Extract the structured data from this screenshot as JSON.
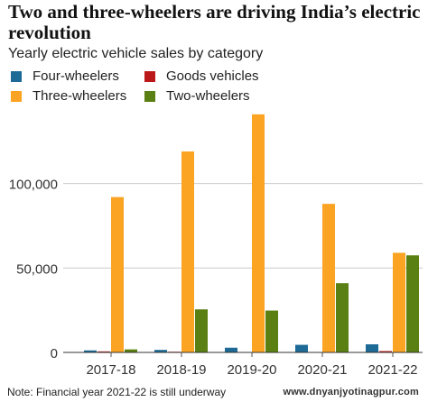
{
  "chart_data": {
    "type": "bar",
    "title": "Two and three-wheelers are driving India’s electric revolution",
    "subtitle": "Yearly electric vehicle sales by category",
    "categories": [
      "2017-18",
      "2018-19",
      "2019-20",
      "2020-21",
      "2021-22"
    ],
    "series": [
      {
        "name": "Four-wheelers",
        "color": "#1d6a96",
        "values": [
          1200,
          1500,
          2800,
          4500,
          4800
        ]
      },
      {
        "name": "Goods vehicles",
        "color": "#bb1919",
        "values": [
          600,
          400,
          200,
          200,
          800
        ]
      },
      {
        "name": "Three-wheelers",
        "color": "#fba323",
        "values": [
          92000,
          119000,
          141000,
          88000,
          59000
        ]
      },
      {
        "name": "Two-wheelers",
        "color": "#5a7f12",
        "values": [
          1800,
          25500,
          24800,
          41000,
          57500
        ]
      }
    ],
    "yticks": [
      0,
      50000,
      100000
    ],
    "ytick_labels": [
      "0",
      "50,000",
      "100,000"
    ],
    "ylim": [
      0,
      150000
    ],
    "grid": true,
    "legend_position": "top-left",
    "xlabel": "",
    "ylabel": ""
  },
  "footer": {
    "note": "Note: Financial year 2021-22 is still underway",
    "source": "www.dnyanjyotinagpur.com"
  }
}
